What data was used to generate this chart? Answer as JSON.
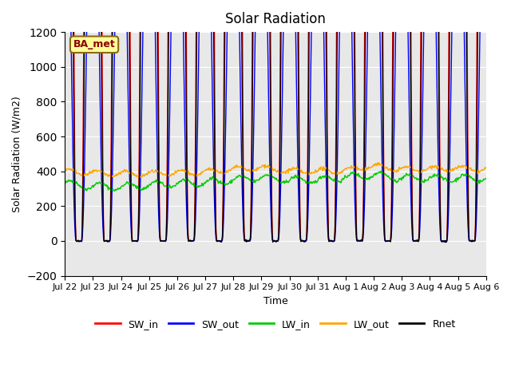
{
  "title": "Solar Radiation",
  "xlabel": "Time",
  "ylabel": "Solar Radiation (W/m2)",
  "ylim": [
    -200,
    1200
  ],
  "annotation": "BA_met",
  "annotation_color": "#8B0000",
  "annotation_bg": "#FFFF99",
  "background_color": "#E8E8E8",
  "series_colors": {
    "SW_in": "#FF0000",
    "SW_out": "#0000FF",
    "LW_in": "#00CC00",
    "LW_out": "#FFA500",
    "Rnet": "#000000"
  },
  "x_tick_labels": [
    "Jul 22",
    "Jul 23",
    "Jul 24",
    "Jul 25",
    "Jul 26",
    "Jul 27",
    "Jul 28",
    "Jul 29",
    "Jul 30",
    "Jul 31",
    "Aug 1",
    "Aug 2",
    "Aug 3",
    "Aug 4",
    "Aug 5",
    "Aug 6"
  ],
  "num_days": 15,
  "points_per_day": 48
}
